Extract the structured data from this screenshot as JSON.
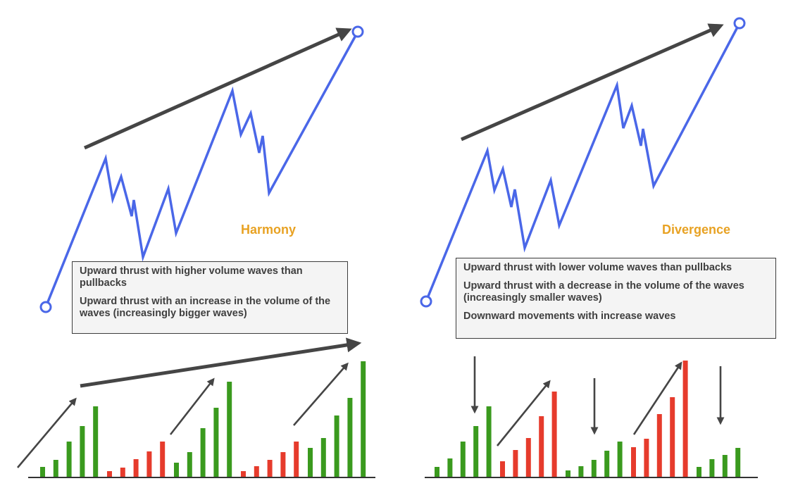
{
  "colors": {
    "price_line": "#4a67e8",
    "arrow": "#454545",
    "volume_up": "#3a9a1e",
    "volume_down": "#e63b2c",
    "title": "#e8a223",
    "box_bg": "#f4f4f4",
    "box_border": "#3c3c3c",
    "text": "#3f3f3f",
    "baseline": "#333333"
  },
  "panels": [
    {
      "title": "Harmony",
      "notes": [
        "Upward thrust with higher volume waves than pullbacks",
        "Upward thrust with an increase in the volume of the waves (increasingly bigger waves)"
      ],
      "trend_arrow_direction": "up",
      "volume_bars": [
        {
          "value": 14,
          "color": "green"
        },
        {
          "value": 24,
          "color": "green"
        },
        {
          "value": 50,
          "color": "green"
        },
        {
          "value": 72,
          "color": "green"
        },
        {
          "value": 100,
          "color": "green"
        },
        {
          "value": 8,
          "color": "red"
        },
        {
          "value": 13,
          "color": "red"
        },
        {
          "value": 25,
          "color": "red"
        },
        {
          "value": 36,
          "color": "red"
        },
        {
          "value": 50,
          "color": "red"
        },
        {
          "value": 20,
          "color": "green"
        },
        {
          "value": 35,
          "color": "green"
        },
        {
          "value": 69,
          "color": "green"
        },
        {
          "value": 98,
          "color": "green"
        },
        {
          "value": 135,
          "color": "green"
        },
        {
          "value": 8,
          "color": "red"
        },
        {
          "value": 15,
          "color": "red"
        },
        {
          "value": 24,
          "color": "red"
        },
        {
          "value": 35,
          "color": "red"
        },
        {
          "value": 50,
          "color": "red"
        },
        {
          "value": 41,
          "color": "green"
        },
        {
          "value": 55,
          "color": "green"
        },
        {
          "value": 87,
          "color": "green"
        },
        {
          "value": 112,
          "color": "green"
        },
        {
          "value": 164,
          "color": "green"
        }
      ]
    },
    {
      "title": "Divergence",
      "notes": [
        "Upward thrust with lower volume waves than pullbacks",
        "Upward thrust with a decrease in the volume of the waves (increasingly smaller waves)",
        "Downward movements with increase waves"
      ],
      "trend_arrow_direction": "up",
      "volume_bars": [
        {
          "value": 14,
          "color": "green"
        },
        {
          "value": 26,
          "color": "green"
        },
        {
          "value": 50,
          "color": "green"
        },
        {
          "value": 72,
          "color": "green"
        },
        {
          "value": 100,
          "color": "green"
        },
        {
          "value": 22,
          "color": "red"
        },
        {
          "value": 38,
          "color": "red"
        },
        {
          "value": 55,
          "color": "red"
        },
        {
          "value": 86,
          "color": "red"
        },
        {
          "value": 121,
          "color": "red"
        },
        {
          "value": 9,
          "color": "green"
        },
        {
          "value": 15,
          "color": "green"
        },
        {
          "value": 24,
          "color": "green"
        },
        {
          "value": 37,
          "color": "green"
        },
        {
          "value": 50,
          "color": "green"
        },
        {
          "value": 42,
          "color": "red"
        },
        {
          "value": 54,
          "color": "red"
        },
        {
          "value": 89,
          "color": "red"
        },
        {
          "value": 113,
          "color": "red"
        },
        {
          "value": 165,
          "color": "red"
        },
        {
          "value": 14,
          "color": "green"
        },
        {
          "value": 25,
          "color": "green"
        },
        {
          "value": 31,
          "color": "green"
        },
        {
          "value": 41,
          "color": "green"
        }
      ]
    }
  ]
}
